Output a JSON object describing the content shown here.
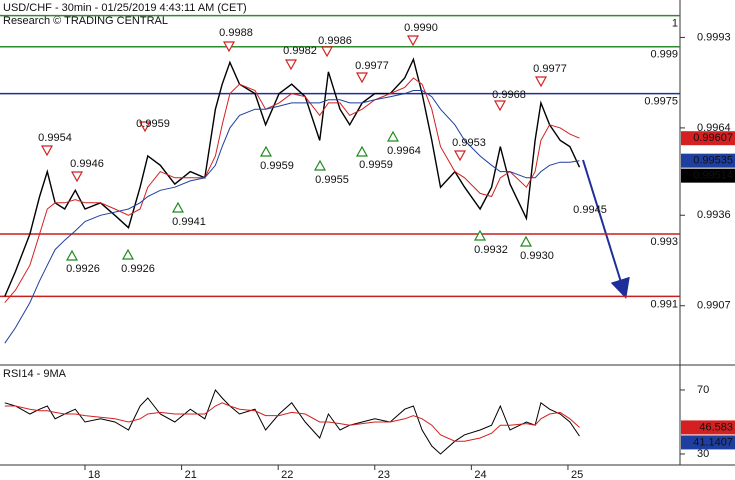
{
  "chart_data": [
    {
      "type": "line",
      "title": "USD/CHF - 30min - 01/25/2019 4:43:11 AM (CET)",
      "subtitle": "Research © TRADING CENTRAL",
      "x": [
        0.17,
        0.28,
        0.43,
        0.53,
        0.61,
        0.69,
        0.79,
        0.9,
        1.0,
        1.16,
        1.31,
        1.45,
        1.57,
        1.65,
        1.78,
        1.93,
        2.09,
        2.24,
        2.35,
        2.42,
        2.5,
        2.6,
        2.76,
        2.87,
        3.01,
        3.14,
        3.28,
        3.43,
        3.52,
        3.64,
        3.74,
        3.87,
        4.0,
        4.16,
        4.31,
        4.4,
        4.49,
        4.59,
        4.68,
        4.83,
        4.93,
        5.09,
        5.21,
        5.3,
        5.4,
        5.57,
        5.66,
        5.72,
        5.81,
        5.92,
        6.02,
        6.12
      ],
      "xlim": [
        0.12,
        7.16
      ],
      "ylim": [
        0.9888,
        1.0005
      ],
      "yticks": [
        0.9907,
        0.9936,
        0.9964,
        0.9993
      ],
      "series": [
        {
          "color": "#000000",
          "values": [
            0.991,
            0.9918,
            0.993,
            0.9942,
            0.995,
            0.994,
            0.9938,
            0.9944,
            0.9938,
            0.994,
            0.9936,
            0.9932,
            0.9945,
            0.9955,
            0.9952,
            0.9946,
            0.995,
            0.9948,
            0.997,
            0.9978,
            0.9985,
            0.9978,
            0.9975,
            0.9965,
            0.9975,
            0.9978,
            0.9974,
            0.996,
            0.9982,
            0.997,
            0.9965,
            0.9972,
            0.9975,
            0.9975,
            0.998,
            0.9986,
            0.9975,
            0.996,
            0.9945,
            0.995,
            0.9945,
            0.9938,
            0.9945,
            0.9958,
            0.9946,
            0.9935,
            0.996,
            0.9972,
            0.9965,
            0.996,
            0.9958,
            0.99514
          ],
          "label_color": "#000000"
        },
        {
          "color": "#d42020",
          "values": [
            0.9908,
            0.9912,
            0.992,
            0.993,
            0.9938,
            0.994,
            0.994,
            0.9941,
            0.994,
            0.994,
            0.9938,
            0.9936,
            0.9938,
            0.9945,
            0.995,
            0.9948,
            0.9948,
            0.9948,
            0.9955,
            0.9965,
            0.9975,
            0.9978,
            0.9976,
            0.997,
            0.9972,
            0.9975,
            0.9974,
            0.9968,
            0.9972,
            0.9972,
            0.9968,
            0.997,
            0.9973,
            0.9975,
            0.9977,
            0.998,
            0.9978,
            0.997,
            0.9958,
            0.995,
            0.9948,
            0.9943,
            0.9942,
            0.9948,
            0.995,
            0.9945,
            0.995,
            0.996,
            0.9965,
            0.9964,
            0.9962,
            0.99607
          ],
          "label_color": "#d42020"
        },
        {
          "color": "#1f3fa0",
          "values": [
            0.9895,
            0.99,
            0.9908,
            0.9915,
            0.992,
            0.9925,
            0.9928,
            0.9931,
            0.9934,
            0.9936,
            0.9937,
            0.9938,
            0.994,
            0.9942,
            0.9944,
            0.9945,
            0.9947,
            0.9948,
            0.9952,
            0.9958,
            0.9964,
            0.9968,
            0.997,
            0.997,
            0.9971,
            0.9972,
            0.9972,
            0.9972,
            0.9973,
            0.9973,
            0.9972,
            0.9972,
            0.9973,
            0.9974,
            0.9975,
            0.9976,
            0.9976,
            0.9974,
            0.997,
            0.9965,
            0.996,
            0.9955,
            0.9952,
            0.995,
            0.995,
            0.9948,
            0.9948,
            0.995,
            0.9952,
            0.9953,
            0.9953,
            0.99535
          ],
          "label_color": "#1f3fa0"
        }
      ],
      "levels": [
        {
          "value": 1,
          "color": "#2e8b2e"
        },
        {
          "value": 0.999,
          "color": "#2e8b2e"
        },
        {
          "value": 0.9975,
          "color": "#1f2f9a"
        },
        {
          "value": 0.993,
          "color": "#c81e1e"
        },
        {
          "value": 0.991,
          "color": "#c81e1e"
        }
      ],
      "annotations": [
        {
          "text": "0.9954",
          "direction": "down"
        },
        {
          "text": "0.9946",
          "direction": "down"
        },
        {
          "text": "0.9959",
          "direction": "down"
        },
        {
          "text": "0.9988",
          "direction": "down"
        },
        {
          "text": "0.9982",
          "direction": "down"
        },
        {
          "text": "0.9986",
          "direction": "down"
        },
        {
          "text": "0.9977",
          "direction": "down"
        },
        {
          "text": "0.9990",
          "direction": "down"
        },
        {
          "text": "0.9953",
          "direction": "down"
        },
        {
          "text": "0.9968",
          "direction": "down"
        },
        {
          "text": "0.9977",
          "direction": "down"
        },
        {
          "text": "0.9926",
          "direction": "up"
        },
        {
          "text": "0.9926",
          "direction": "up"
        },
        {
          "text": "0.9941",
          "direction": "up"
        },
        {
          "text": "0.9959",
          "direction": "up"
        },
        {
          "text": "0.9955",
          "direction": "up"
        },
        {
          "text": "0.9959",
          "direction": "up"
        },
        {
          "text": "0.9964",
          "direction": "up"
        },
        {
          "text": "0.9932",
          "direction": "up"
        },
        {
          "text": "0.9930",
          "direction": "up"
        },
        {
          "text": "0.9945",
          "direction": "none"
        }
      ]
    },
    {
      "type": "line",
      "title": "RSI14 - 9MA",
      "x": [
        0.17,
        0.28,
        0.43,
        0.53,
        0.61,
        0.69,
        0.79,
        0.9,
        1.0,
        1.16,
        1.31,
        1.45,
        1.57,
        1.65,
        1.78,
        1.93,
        2.09,
        2.24,
        2.35,
        2.42,
        2.5,
        2.6,
        2.76,
        2.87,
        3.01,
        3.14,
        3.28,
        3.43,
        3.52,
        3.64,
        3.74,
        3.87,
        4.0,
        4.16,
        4.31,
        4.4,
        4.49,
        4.59,
        4.68,
        4.83,
        4.93,
        5.09,
        5.21,
        5.3,
        5.4,
        5.57,
        5.66,
        5.72,
        5.81,
        5.92,
        6.02,
        6.12
      ],
      "xlim": [
        0.12,
        7.16
      ],
      "xticks": [
        {
          "value": 1,
          "label": "18"
        },
        {
          "value": 2,
          "label": "21"
        },
        {
          "value": 3,
          "label": "22"
        },
        {
          "value": 4,
          "label": "23"
        },
        {
          "value": 5,
          "label": "24"
        },
        {
          "value": 6,
          "label": "25"
        }
      ],
      "ylim": [
        23.1,
        85.6
      ],
      "yticks": [
        30,
        70
      ],
      "series": [
        {
          "color": "#000000",
          "label_color": "#1f3fa0",
          "values": [
            62,
            60,
            55,
            58,
            60,
            52,
            55,
            58,
            50,
            52,
            50,
            45,
            60,
            65,
            55,
            50,
            58,
            52,
            70,
            65,
            60,
            55,
            58,
            45,
            55,
            62,
            50,
            40,
            55,
            45,
            48,
            50,
            52,
            50,
            58,
            60,
            45,
            35,
            30,
            38,
            42,
            45,
            48,
            60,
            45,
            50,
            48,
            62,
            58,
            55,
            50,
            41.1407
          ]
        },
        {
          "color": "#d42020",
          "label_color": "#d42020",
          "values": [
            60,
            60,
            58,
            57,
            57,
            56,
            55,
            55,
            54,
            53,
            52,
            50,
            52,
            55,
            56,
            55,
            55,
            55,
            60,
            62,
            60,
            58,
            57,
            54,
            54,
            56,
            55,
            50,
            50,
            49,
            48,
            49,
            50,
            50,
            52,
            54,
            52,
            48,
            42,
            38,
            38,
            40,
            43,
            48,
            48,
            49,
            48,
            52,
            55,
            56,
            52,
            46.583
          ]
        }
      ]
    }
  ]
}
